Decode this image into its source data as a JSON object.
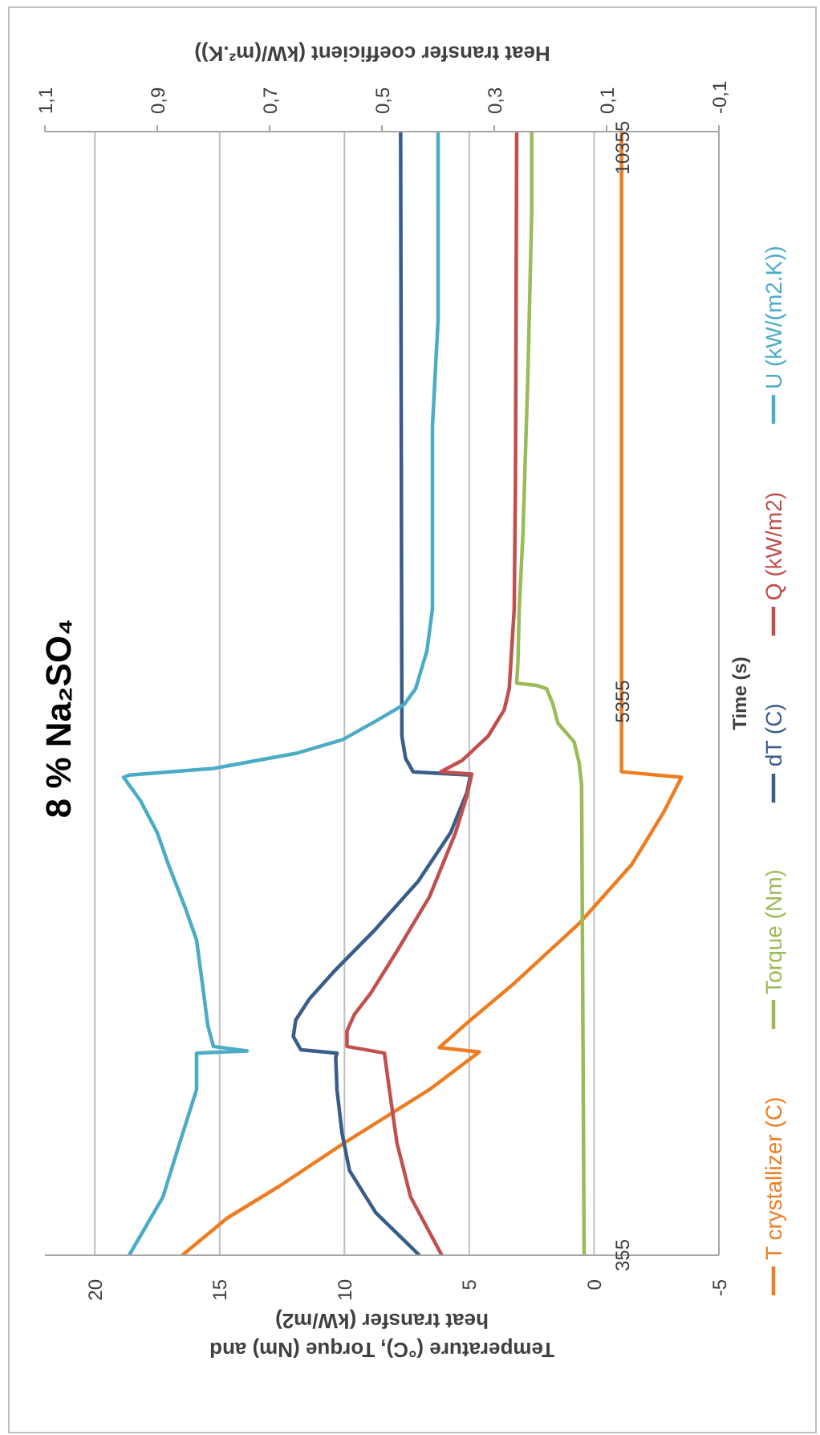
{
  "chart_data": {
    "type": "line",
    "title": "8 % Na₂SO₄",
    "xlabel": "Temperature (°C), Torque (Nm) and heat transfer (kW/m2)",
    "x2label": "Heat transfer coefficient (kW/(m².K))",
    "ylabel": "Time (s)",
    "xlim": [
      22,
      -5
    ],
    "xticks": [
      20,
      15,
      10,
      5,
      0,
      -5
    ],
    "x2lim": [
      1.1,
      -0.1
    ],
    "x2ticks": [
      {
        "value": 1.1,
        "label": "1,1"
      },
      {
        "value": 0.9,
        "label": "0,9"
      },
      {
        "value": 0.7,
        "label": "0,7"
      },
      {
        "value": 0.5,
        "label": "0,5"
      },
      {
        "value": 0.3,
        "label": "0,3"
      },
      {
        "value": 0.1,
        "label": "0,1"
      },
      {
        "value": -0.1,
        "label": "-0,1"
      }
    ],
    "ylim": [
      355,
      10500
    ],
    "yticks": [
      355,
      5355,
      10355
    ],
    "grid": "x",
    "legend": "right",
    "marker": "none",
    "series": [
      {
        "name": "T crystallizer (C)",
        "color": "#ee7d22",
        "x": [
          16.5,
          14.7,
          12.6,
          10.0,
          8.3,
          6.6,
          4.6,
          6.2,
          5.1,
          3.2,
          0.6,
          -1.5,
          -2.8,
          -3.5,
          -1.1,
          -1.1
        ],
        "values": [
          355,
          690,
          980,
          1370,
          1610,
          1850,
          2190,
          2230,
          2450,
          2810,
          3350,
          3880,
          4360,
          4670,
          4720,
          10500
        ]
      },
      {
        "name": "Torque (Nm)",
        "color": "#9bbb59",
        "x": [
          0.4,
          0.5,
          0.6,
          0.8,
          1.45,
          1.65,
          1.9,
          2.3,
          3.1,
          3.05,
          3.0,
          2.85,
          2.65,
          2.5,
          2.5
        ],
        "values": [
          355,
          4600,
          4800,
          4990,
          5160,
          5330,
          5470,
          5500,
          5520,
          5720,
          6190,
          6870,
          8320,
          9770,
          10500
        ]
      },
      {
        "name": "dT (C)",
        "color": "#385d8a",
        "x": [
          7.0,
          8.75,
          9.8,
          10.1,
          10.3,
          10.35,
          10.3,
          11.75,
          12.05,
          11.95,
          11.4,
          10.45,
          8.75,
          7.05,
          5.75,
          5.1,
          4.95,
          7.25,
          7.55,
          7.7,
          7.75
        ],
        "values": [
          355,
          740,
          1120,
          1460,
          1850,
          2140,
          2180,
          2210,
          2330,
          2480,
          2670,
          2910,
          3300,
          3730,
          4170,
          4530,
          4690,
          4720,
          4840,
          5040,
          10500
        ]
      },
      {
        "name": "Q (kW/m2)",
        "color": "#c0504d",
        "x": [
          6.1,
          7.35,
          7.9,
          8.2,
          8.4,
          9.9,
          9.9,
          9.6,
          8.95,
          7.9,
          6.6,
          5.55,
          5.1,
          4.9,
          6.15,
          5.3,
          4.25,
          3.6,
          3.4,
          3.2,
          3.15,
          3.1
        ],
        "values": [
          355,
          880,
          1370,
          1850,
          2180,
          2240,
          2380,
          2530,
          2720,
          3100,
          3590,
          4170,
          4500,
          4700,
          4720,
          4820,
          5040,
          5280,
          5470,
          6190,
          7350,
          10500
        ]
      },
      {
        "name": "U (kW/(m2.K))",
        "color": "#4bacc6",
        "axis": "x2",
        "x": [
          0.95,
          0.89,
          0.86,
          0.83,
          0.83,
          0.74,
          0.8,
          0.81,
          0.82,
          0.83,
          0.85,
          0.88,
          0.9,
          0.93,
          0.95,
          0.96,
          0.95,
          0.8,
          0.65,
          0.57,
          0.51,
          0.46,
          0.44,
          0.42,
          0.41,
          0.41,
          0.41,
          0.4,
          0.4
        ],
        "values": [
          355,
          880,
          1370,
          1850,
          2180,
          2200,
          2240,
          2430,
          2820,
          3200,
          3490,
          3880,
          4170,
          4460,
          4600,
          4670,
          4690,
          4750,
          4890,
          5010,
          5180,
          5330,
          5470,
          5810,
          6190,
          6870,
          7840,
          8800,
          10500
        ]
      }
    ]
  }
}
